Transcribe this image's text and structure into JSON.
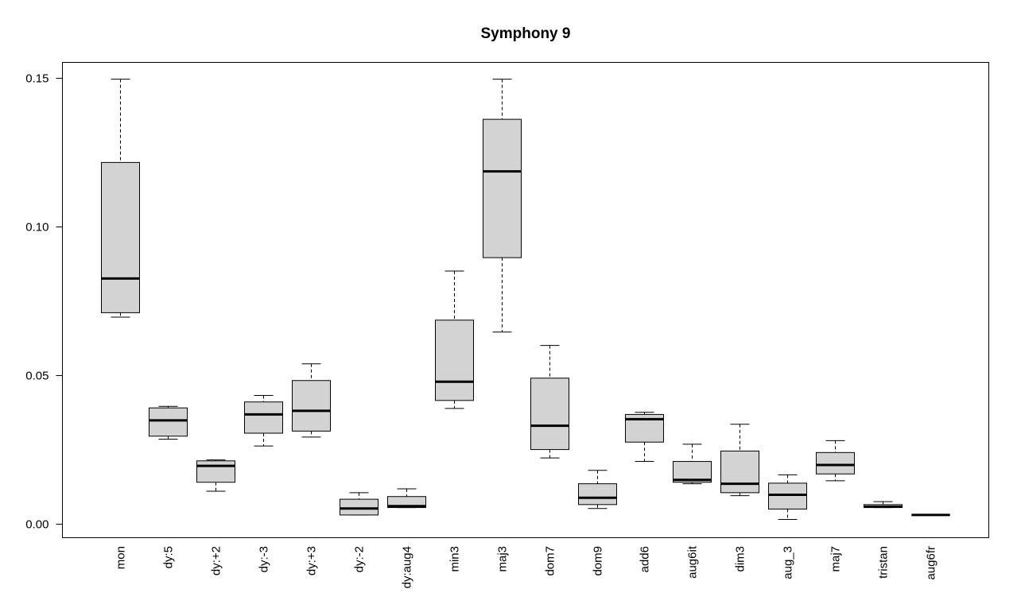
{
  "chart_data": {
    "type": "boxplot",
    "title": "Symphony 9",
    "xlabel": "",
    "ylabel": "",
    "ylim": [
      -0.0045,
      0.155
    ],
    "y_ticks": [
      0.0,
      0.05,
      0.1,
      0.15
    ],
    "y_tick_labels": [
      "0.00",
      "0.05",
      "0.10",
      "0.15"
    ],
    "grid": false,
    "box_color": "#d3d3d3",
    "categories": [
      "mon",
      "dy:5",
      "dy:+2",
      "dy:-3",
      "dy:+3",
      "dy:-2",
      "dy:aug4",
      "min3",
      "maj3",
      "dom7",
      "dom9",
      "add6",
      "aug6it",
      "dim3",
      "aug_3",
      "maj7",
      "tristan",
      "aug6fr"
    ],
    "boxes": [
      {
        "min": 0.0695,
        "q1": 0.071,
        "median": 0.0825,
        "q3": 0.1215,
        "max": 0.1495
      },
      {
        "min": 0.0285,
        "q1": 0.0295,
        "median": 0.0348,
        "q3": 0.039,
        "max": 0.0395
      },
      {
        "min": 0.011,
        "q1": 0.014,
        "median": 0.0195,
        "q3": 0.0212,
        "max": 0.0215
      },
      {
        "min": 0.0262,
        "q1": 0.0305,
        "median": 0.0368,
        "q3": 0.041,
        "max": 0.0432
      },
      {
        "min": 0.0292,
        "q1": 0.0312,
        "median": 0.038,
        "q3": 0.0482,
        "max": 0.0538
      },
      {
        "min": 0.003,
        "q1": 0.003,
        "median": 0.0052,
        "q3": 0.0083,
        "max": 0.0105
      },
      {
        "min": 0.0055,
        "q1": 0.0055,
        "median": 0.006,
        "q3": 0.0092,
        "max": 0.0118
      },
      {
        "min": 0.0388,
        "q1": 0.0415,
        "median": 0.0478,
        "q3": 0.0685,
        "max": 0.085
      },
      {
        "min": 0.0645,
        "q1": 0.0895,
        "median": 0.1185,
        "q3": 0.136,
        "max": 0.1495
      },
      {
        "min": 0.0222,
        "q1": 0.025,
        "median": 0.033,
        "q3": 0.049,
        "max": 0.06
      },
      {
        "min": 0.0052,
        "q1": 0.0065,
        "median": 0.0088,
        "q3": 0.0135,
        "max": 0.018
      },
      {
        "min": 0.021,
        "q1": 0.0275,
        "median": 0.0352,
        "q3": 0.0368,
        "max": 0.0375
      },
      {
        "min": 0.0135,
        "q1": 0.014,
        "median": 0.0148,
        "q3": 0.021,
        "max": 0.0268
      },
      {
        "min": 0.0095,
        "q1": 0.0105,
        "median": 0.0135,
        "q3": 0.0245,
        "max": 0.0335
      },
      {
        "min": 0.0015,
        "q1": 0.005,
        "median": 0.0098,
        "q3": 0.0137,
        "max": 0.0165
      },
      {
        "min": 0.0145,
        "q1": 0.0168,
        "median": 0.0198,
        "q3": 0.024,
        "max": 0.028
      },
      {
        "min": 0.0055,
        "q1": 0.0055,
        "median": 0.0058,
        "q3": 0.0065,
        "max": 0.0075
      },
      {
        "min": 0.003,
        "q1": 0.003,
        "median": 0.003,
        "q3": 0.003,
        "max": 0.003
      }
    ]
  }
}
